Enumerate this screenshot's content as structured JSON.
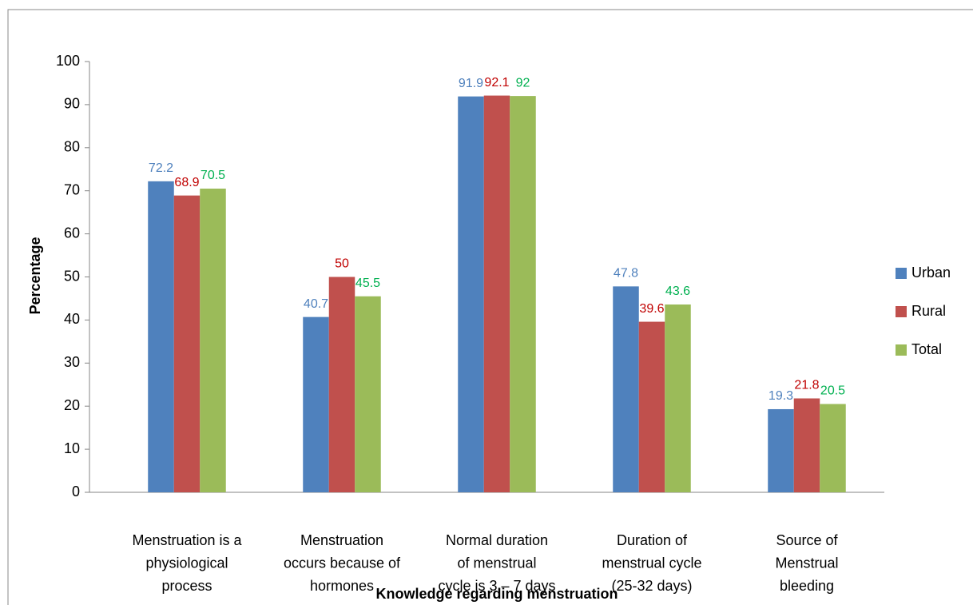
{
  "chart_data": {
    "type": "bar",
    "x_label": "Knowledge regarding menstruation",
    "y_label": "Percentage",
    "categories": [
      "Menstruation is a\nphysiological\nprocess",
      "Menstruation\noccurs because of\nhormones",
      "Normal duration\nof menstrual\ncycle is 3 – 7 days",
      "Duration of\nmenstrual cycle\n(25-32 days)",
      "Source of\nMenstrual\nbleeding"
    ],
    "series": [
      {
        "name": "Urban",
        "color": "#4f81bd",
        "label_color": "#4f81bd",
        "values": [
          72.2,
          40.7,
          91.9,
          47.8,
          19.3
        ]
      },
      {
        "name": "Rural",
        "color": "#c0504d",
        "label_color": "#c00000",
        "values": [
          68.9,
          50,
          92.1,
          39.6,
          21.8
        ]
      },
      {
        "name": "Total",
        "color": "#9bbb59",
        "label_color": "#00b050",
        "values": [
          70.5,
          45.5,
          92,
          43.6,
          20.5
        ]
      }
    ],
    "ylim": [
      0,
      100
    ],
    "yticks": [
      0,
      10,
      20,
      30,
      40,
      50,
      60,
      70,
      80,
      90,
      100
    ],
    "grid": false,
    "legend": "right"
  }
}
